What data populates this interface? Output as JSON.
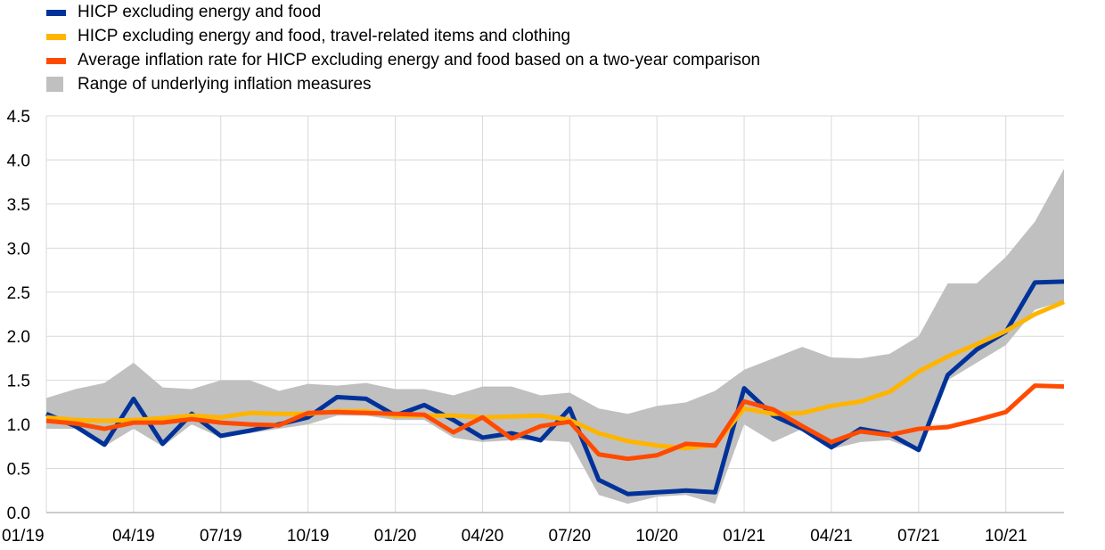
{
  "chart_data": {
    "type": "line",
    "title": "",
    "xlabel": "",
    "ylabel": "",
    "ylim": [
      0,
      4.5
    ],
    "yticks": [
      "0.0",
      "0.5",
      "1.0",
      "1.5",
      "2.0",
      "2.5",
      "3.0",
      "3.5",
      "4.0",
      "4.5"
    ],
    "x_tick_labels": [
      "01/19",
      "04/19",
      "07/19",
      "10/19",
      "01/20",
      "04/20",
      "07/20",
      "10/20",
      "01/21",
      "04/21",
      "07/21",
      "10/21"
    ],
    "x": [
      "01/19",
      "02/19",
      "03/19",
      "04/19",
      "05/19",
      "06/19",
      "07/19",
      "08/19",
      "09/19",
      "10/19",
      "11/19",
      "12/19",
      "01/20",
      "02/20",
      "03/20",
      "04/20",
      "05/20",
      "06/20",
      "07/20",
      "08/20",
      "09/20",
      "10/20",
      "11/20",
      "12/20",
      "01/21",
      "02/21",
      "03/21",
      "04/21",
      "05/21",
      "06/21",
      "07/21",
      "08/21",
      "09/21",
      "10/21",
      "11/21",
      "12/21"
    ],
    "grid": "horizontal",
    "legend_position": "top-left",
    "range": {
      "name": "Range of underlying inflation measures",
      "color": "#c0c0c0",
      "upper": [
        1.3,
        1.4,
        1.47,
        1.7,
        1.42,
        1.4,
        1.5,
        1.5,
        1.38,
        1.46,
        1.44,
        1.47,
        1.4,
        1.4,
        1.33,
        1.43,
        1.43,
        1.33,
        1.36,
        1.18,
        1.12,
        1.21,
        1.25,
        1.38,
        1.62,
        1.75,
        1.88,
        1.76,
        1.75,
        1.8,
        2.0,
        2.6,
        2.6,
        2.9,
        3.3,
        3.9
      ],
      "lower": [
        0.95,
        0.95,
        0.75,
        0.95,
        0.75,
        1.0,
        0.85,
        0.9,
        0.95,
        1.0,
        1.1,
        1.1,
        1.05,
        1.05,
        0.85,
        0.8,
        0.82,
        0.82,
        0.8,
        0.2,
        0.1,
        0.18,
        0.2,
        0.1,
        1.0,
        0.8,
        0.95,
        0.72,
        0.8,
        0.82,
        0.7,
        1.5,
        1.7,
        1.9,
        2.3,
        2.4
      ]
    },
    "series": [
      {
        "name": "HICP excluding energy and food",
        "color": "#003299",
        "values": [
          1.12,
          0.98,
          0.77,
          1.29,
          0.78,
          1.12,
          0.87,
          0.93,
          1.0,
          1.08,
          1.31,
          1.29,
          1.1,
          1.22,
          1.05,
          0.85,
          0.9,
          0.82,
          1.18,
          0.37,
          0.21,
          0.23,
          0.25,
          0.23,
          1.41,
          1.1,
          0.95,
          0.74,
          0.95,
          0.89,
          0.71,
          1.56,
          1.85,
          2.05,
          2.61,
          2.62
        ]
      },
      {
        "name": "HICP excluding energy and food, travel-related items and clothing",
        "color": "#ffb400",
        "values": [
          1.08,
          1.05,
          1.04,
          1.05,
          1.07,
          1.1,
          1.08,
          1.13,
          1.12,
          1.12,
          1.15,
          1.15,
          1.1,
          1.1,
          1.1,
          1.08,
          1.09,
          1.1,
          1.05,
          0.9,
          0.81,
          0.76,
          0.73,
          0.77,
          1.18,
          1.12,
          1.13,
          1.21,
          1.26,
          1.37,
          1.6,
          1.77,
          1.91,
          2.06,
          2.25,
          2.39
        ]
      },
      {
        "name": "Average inflation rate for HICP excluding energy and food based on a two-year comparison",
        "color": "#ff4b00",
        "values": [
          1.04,
          1.01,
          0.95,
          1.02,
          1.02,
          1.06,
          1.02,
          1.0,
          0.99,
          1.13,
          1.14,
          1.13,
          1.12,
          1.11,
          0.91,
          1.08,
          0.84,
          0.98,
          1.03,
          0.66,
          0.61,
          0.65,
          0.78,
          0.76,
          1.26,
          1.17,
          0.98,
          0.8,
          0.92,
          0.88,
          0.95,
          0.97,
          1.05,
          1.14,
          1.44,
          1.43
        ]
      }
    ]
  }
}
